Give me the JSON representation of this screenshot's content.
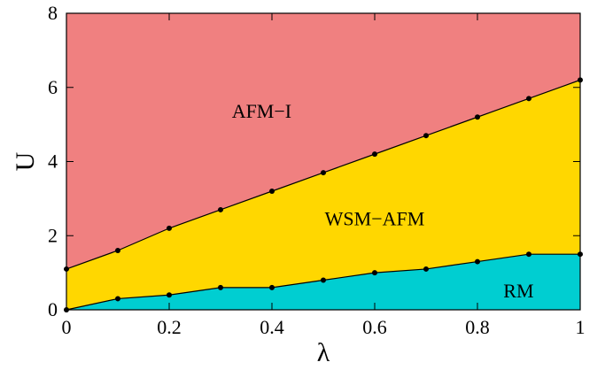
{
  "chart_data": {
    "type": "area",
    "title": "",
    "xlabel": "λ",
    "ylabel": "U",
    "xlim": [
      0,
      1
    ],
    "ylim": [
      0,
      8
    ],
    "x_ticks": [
      0,
      0.2,
      0.4,
      0.6,
      0.8,
      1
    ],
    "x_tick_labels": [
      "0",
      "0.2",
      "0.4",
      "0.6",
      "0.8",
      "1"
    ],
    "y_ticks": [
      0,
      2,
      4,
      6,
      8
    ],
    "y_tick_labels": [
      "0",
      "2",
      "4",
      "6",
      "8"
    ],
    "grid": false,
    "boundaries": [
      {
        "x": [
          0,
          0.1,
          0.2,
          0.3,
          0.4,
          0.5,
          0.6,
          0.7,
          0.8,
          0.9,
          1.0
        ],
        "y": [
          0,
          0.3,
          0.4,
          0.6,
          0.6,
          0.8,
          1.0,
          1.1,
          1.3,
          1.5,
          1.5
        ]
      },
      {
        "x": [
          0,
          0.1,
          0.2,
          0.3,
          0.4,
          0.5,
          0.6,
          0.7,
          0.8,
          0.9,
          1.0
        ],
        "y": [
          1.1,
          1.6,
          2.2,
          2.7,
          3.2,
          3.7,
          4.2,
          4.7,
          5.2,
          5.7,
          6.2
        ]
      }
    ],
    "regions": [
      {
        "name": "RM",
        "color": "#00CED1",
        "label_x": 0.88,
        "label_y": 0.5
      },
      {
        "name": "WSM−AFM",
        "color": "#FFD700",
        "label_x": 0.6,
        "label_y": 2.45
      },
      {
        "name": "AFM−I",
        "color": "#F08080",
        "label_x": 0.38,
        "label_y": 5.35
      }
    ]
  }
}
